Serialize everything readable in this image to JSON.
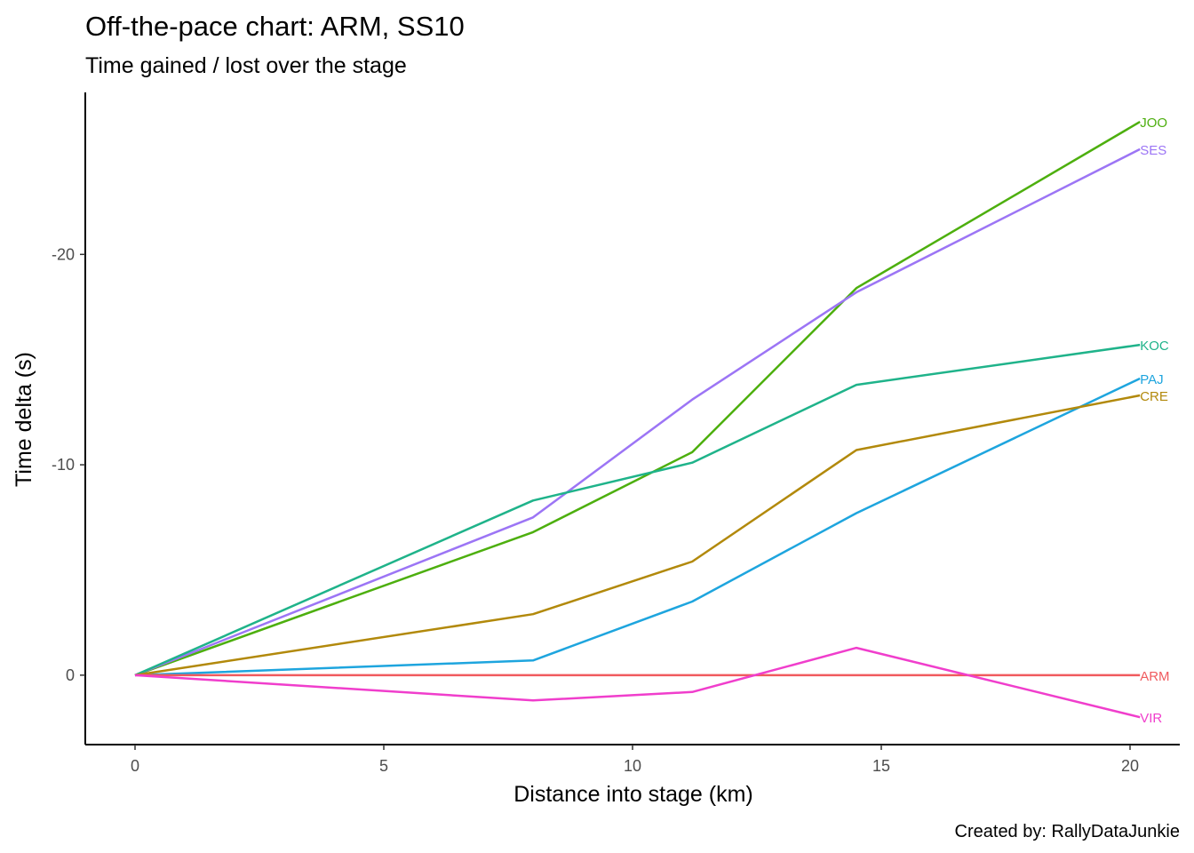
{
  "chart_data": {
    "type": "line",
    "title": "Off-the-pace chart: ARM, SS10",
    "subtitle": "Time gained / lost over the stage",
    "xlabel": "Distance into stage (km)",
    "ylabel": "Time delta (s)",
    "caption": "Created by: RallyDataJunkie",
    "xlim": [
      -1,
      21
    ],
    "ylim": [
      3.3,
      -27.7
    ],
    "y_axis_reversed": true,
    "x_ticks": [
      0,
      5,
      10,
      15,
      20
    ],
    "y_ticks": [
      0,
      -10,
      -20
    ],
    "grid": false,
    "legend": "none (series labelled at line ends)",
    "x": [
      0,
      8,
      11.2,
      14.5,
      20.2
    ],
    "series": [
      {
        "name": "JOO",
        "color": "#4daf0e",
        "values": [
          0,
          -6.8,
          -10.6,
          -18.4,
          -26.3
        ]
      },
      {
        "name": "SES",
        "color": "#9c75f5",
        "values": [
          0,
          -7.5,
          -13.1,
          -18.2,
          -25.0
        ]
      },
      {
        "name": "KOC",
        "color": "#1fb38a",
        "values": [
          0,
          -8.3,
          -10.1,
          -13.8,
          -15.7
        ]
      },
      {
        "name": "PAJ",
        "color": "#1ea5de",
        "values": [
          0,
          -0.7,
          -3.5,
          -7.7,
          -14.1
        ]
      },
      {
        "name": "CRE",
        "color": "#b2890b",
        "values": [
          0,
          -2.9,
          -5.4,
          -10.7,
          -13.3
        ]
      },
      {
        "name": "ARM",
        "color": "#f05a5e",
        "values": [
          0,
          0,
          0,
          0,
          0
        ]
      },
      {
        "name": "VIR",
        "color": "#f03ecc",
        "values": [
          0,
          1.2,
          0.8,
          -1.3,
          2.0
        ]
      }
    ]
  }
}
